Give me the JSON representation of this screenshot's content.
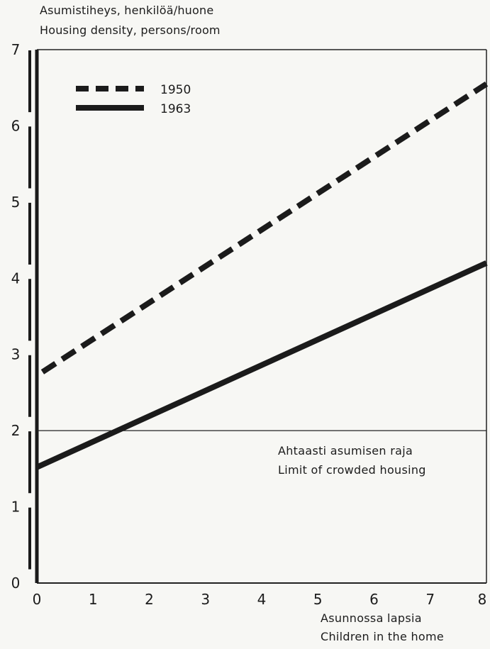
{
  "chart_data": {
    "type": "line",
    "ylabel": [
      "Asumistiheys, henkilöä/huone",
      "Housing density, persons/room"
    ],
    "xlabel": [
      "Asunnossa lapsia",
      "Children in the home"
    ],
    "x_ticks": [
      "0",
      "1",
      "2",
      "3",
      "4",
      "5",
      "6",
      "7",
      "8"
    ],
    "y_ticks": [
      "0",
      "1",
      "2",
      "3",
      "4",
      "5",
      "6",
      "7"
    ],
    "xlim": [
      0,
      8
    ],
    "ylim": [
      0,
      7
    ],
    "grid": false,
    "legend_position": "top-left",
    "series": [
      {
        "name": "1950",
        "style": "dashed",
        "x": [
          0.1,
          8
        ],
        "y": [
          2.77,
          6.55
        ]
      },
      {
        "name": "1963",
        "style": "solid",
        "x": [
          0,
          8
        ],
        "y": [
          1.52,
          4.2
        ]
      }
    ],
    "reference_line": {
      "y": 2,
      "label": [
        "Ahtaasti asumisen raja",
        "Limit of crowded housing"
      ]
    }
  }
}
